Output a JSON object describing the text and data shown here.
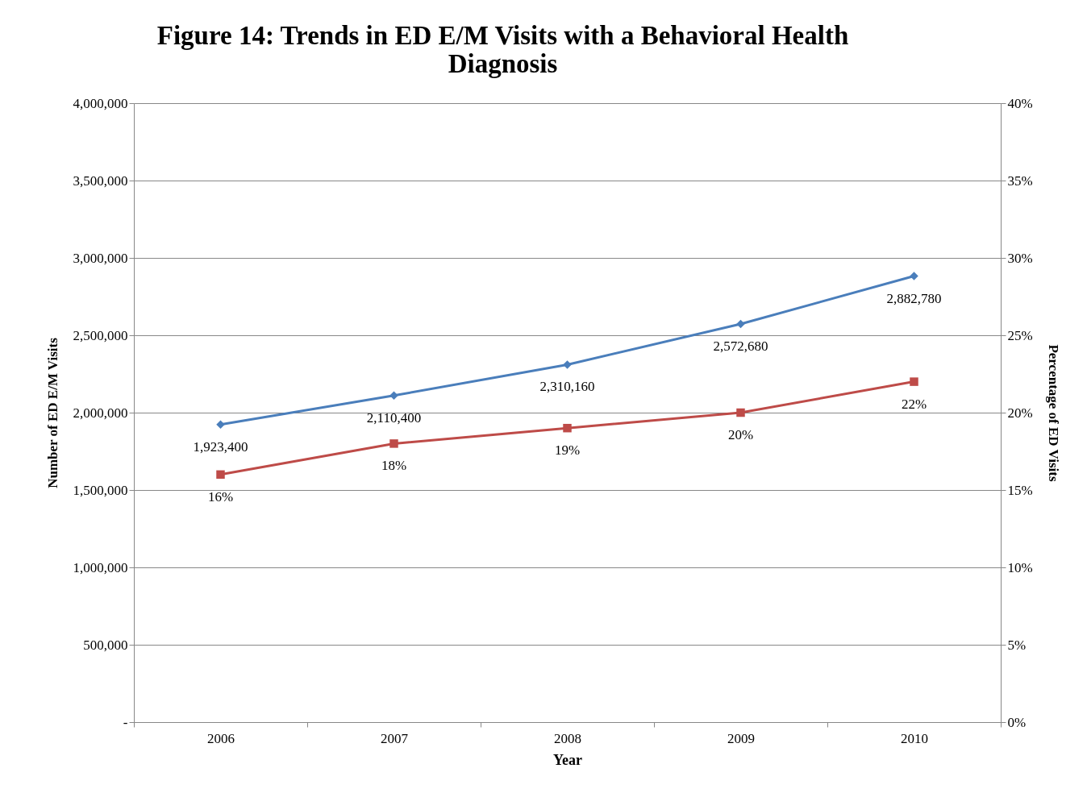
{
  "chart_data": {
    "type": "line",
    "title": "Figure 14:  Trends in ED E/M Visits with a Behavioral Health Diagnosis",
    "xlabel": "Year",
    "ylabel": "Number of ED E/M Visits",
    "y2label": "Percentage of ED Visits",
    "categories": [
      "2006",
      "2007",
      "2008",
      "2009",
      "2010"
    ],
    "series": [
      {
        "color": "#4a7ebb",
        "marker": "diamond",
        "values": [
          1923400,
          2110400,
          2310160,
          2572680,
          2882780
        ],
        "value_labels": [
          "1,923,400",
          "2,110,400",
          "2,310,160",
          "2,572,680",
          "2,882,780"
        ]
      },
      {
        "color": "#be4b48",
        "marker": "square",
        "axis": "y2",
        "values": [
          16,
          18,
          19,
          20,
          22
        ],
        "value_labels": [
          "16%",
          "18%",
          "19%",
          "20%",
          "22%"
        ]
      }
    ],
    "ylim": [
      0,
      4000000
    ],
    "yticks": [
      {
        "value": 0,
        "label": "-"
      },
      {
        "value": 500000,
        "label": "500,000"
      },
      {
        "value": 1000000,
        "label": "1,000,000"
      },
      {
        "value": 1500000,
        "label": "1,500,000"
      },
      {
        "value": 2000000,
        "label": "2,000,000"
      },
      {
        "value": 2500000,
        "label": "2,500,000"
      },
      {
        "value": 3000000,
        "label": "3,000,000"
      },
      {
        "value": 3500000,
        "label": "3,500,000"
      },
      {
        "value": 4000000,
        "label": "4,000,000"
      }
    ],
    "y2lim": [
      0,
      40
    ],
    "y2ticks": [
      {
        "value": 0,
        "label": "0%"
      },
      {
        "value": 5,
        "label": "5%"
      },
      {
        "value": 10,
        "label": "10%"
      },
      {
        "value": 15,
        "label": "15%"
      },
      {
        "value": 20,
        "label": "20%"
      },
      {
        "value": 25,
        "label": "25%"
      },
      {
        "value": 30,
        "label": "30%"
      },
      {
        "value": 35,
        "label": "35%"
      },
      {
        "value": 40,
        "label": "40%"
      }
    ],
    "grid": "y"
  }
}
